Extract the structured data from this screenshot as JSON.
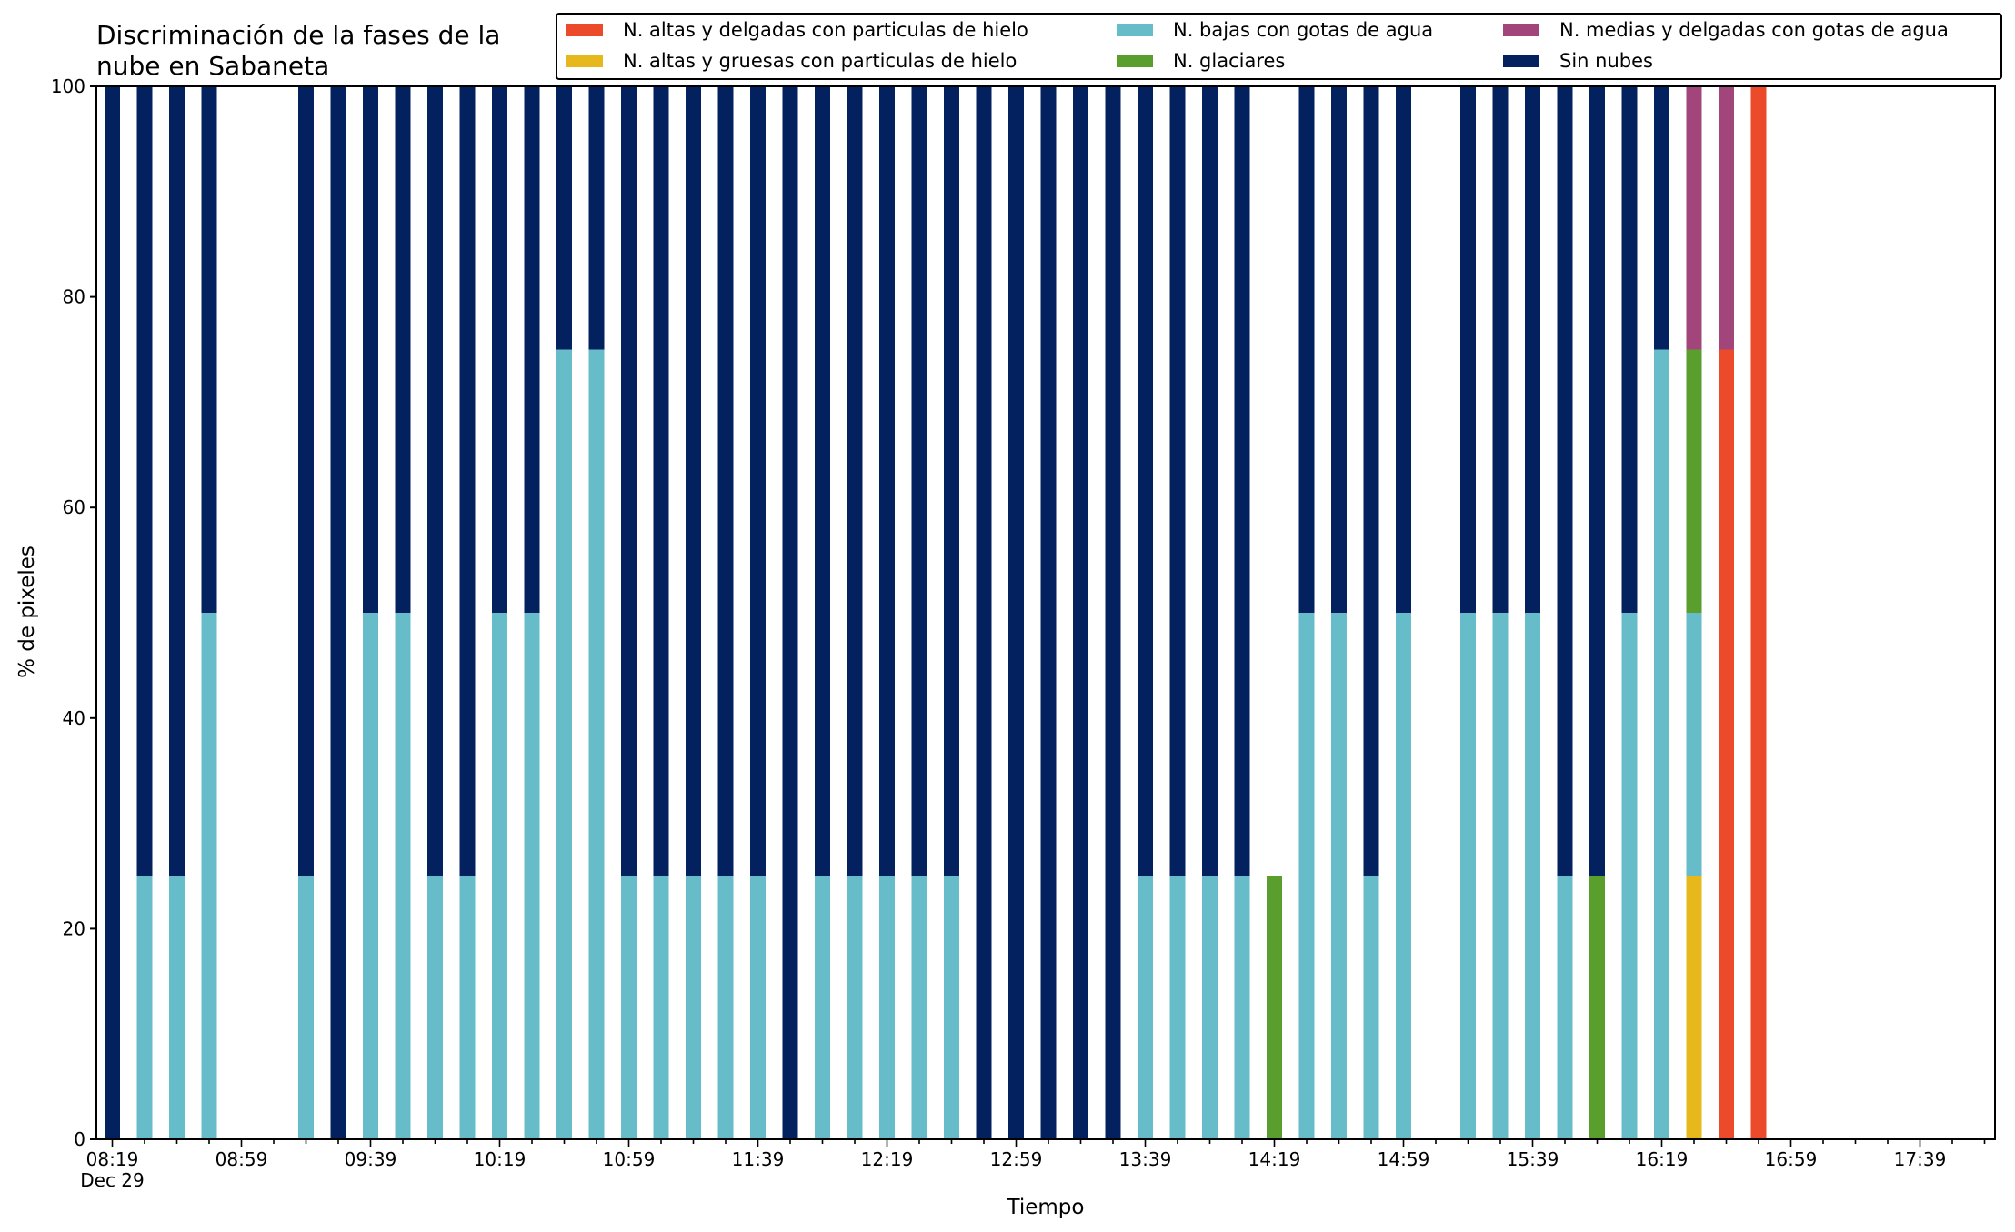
{
  "chart_data": {
    "type": "bar",
    "stacked": true,
    "title": "Discriminación de la fases de la\nnube en Sabaneta",
    "xlabel": "Tiempo",
    "ylabel": "% de pixeles",
    "ylim": [
      0,
      100
    ],
    "y_ticks": [
      0,
      20,
      40,
      60,
      80,
      100
    ],
    "x_tick_labels": [
      "08:19\nDec 29",
      "08:59",
      "09:39",
      "10:19",
      "10:59",
      "11:39",
      "12:19",
      "12:59",
      "13:39",
      "14:19",
      "14:59",
      "15:39",
      "16:19",
      "16:59",
      "17:39"
    ],
    "categories": [
      "08:19",
      "08:29",
      "08:39",
      "08:49",
      "08:59",
      "09:09",
      "09:19",
      "09:29",
      "09:39",
      "09:49",
      "09:59",
      "10:09",
      "10:19",
      "10:29",
      "10:39",
      "10:49",
      "10:59",
      "11:09",
      "11:19",
      "11:29",
      "11:39",
      "11:49",
      "11:59",
      "12:09",
      "12:19",
      "12:29",
      "12:39",
      "12:49",
      "12:59",
      "13:09",
      "13:19",
      "13:29",
      "13:39",
      "13:49",
      "13:59",
      "14:09",
      "14:19",
      "14:29",
      "14:39",
      "14:49",
      "14:59",
      "15:09",
      "15:19",
      "15:29",
      "15:39",
      "15:49",
      "15:59",
      "16:09",
      "16:19",
      "16:29",
      "16:39",
      "16:49",
      "16:59",
      "17:09",
      "17:19",
      "17:29",
      "17:39",
      "17:49",
      "17:59"
    ],
    "legend_position": "top-right",
    "legend_columns": 3,
    "grid": false,
    "series": [
      {
        "name": "N. altas y delgadas con particulas de hielo",
        "color": "#eb4a2b",
        "values": [
          0,
          0,
          0,
          0,
          0,
          0,
          0,
          0,
          0,
          0,
          0,
          0,
          0,
          0,
          0,
          0,
          0,
          0,
          0,
          0,
          0,
          0,
          0,
          0,
          0,
          0,
          0,
          0,
          0,
          0,
          0,
          0,
          0,
          0,
          0,
          0,
          0,
          0,
          0,
          0,
          0,
          0,
          0,
          0,
          0,
          0,
          0,
          0,
          0,
          0,
          75,
          100,
          0,
          0,
          0,
          0,
          0,
          0,
          0
        ]
      },
      {
        "name": "N. altas y gruesas con particulas de hielo",
        "color": "#e6b81c",
        "values": [
          0,
          0,
          0,
          0,
          0,
          0,
          0,
          0,
          0,
          0,
          0,
          0,
          0,
          0,
          0,
          0,
          0,
          0,
          0,
          0,
          0,
          0,
          0,
          0,
          0,
          0,
          0,
          0,
          0,
          0,
          0,
          0,
          0,
          0,
          0,
          0,
          0,
          0,
          0,
          0,
          0,
          0,
          0,
          0,
          0,
          0,
          0,
          0,
          0,
          25,
          0,
          0,
          0,
          0,
          0,
          0,
          0,
          0,
          0
        ]
      },
      {
        "name": "N. bajas con gotas de agua",
        "color": "#66bdc9",
        "values": [
          0,
          25,
          25,
          50,
          0,
          0,
          25,
          0,
          50,
          50,
          25,
          25,
          50,
          50,
          75,
          75,
          25,
          25,
          25,
          25,
          25,
          0,
          25,
          25,
          25,
          25,
          25,
          0,
          0,
          0,
          0,
          0,
          25,
          25,
          25,
          25,
          0,
          50,
          50,
          25,
          50,
          0,
          50,
          50,
          50,
          25,
          0,
          50,
          75,
          25,
          0,
          0,
          0,
          0,
          0,
          0,
          0,
          0,
          0
        ]
      },
      {
        "name": "N. glaciares",
        "color": "#5a9e2e",
        "values": [
          0,
          0,
          0,
          0,
          0,
          0,
          0,
          0,
          0,
          0,
          0,
          0,
          0,
          0,
          0,
          0,
          0,
          0,
          0,
          0,
          0,
          0,
          0,
          0,
          0,
          0,
          0,
          0,
          0,
          0,
          0,
          0,
          0,
          0,
          0,
          0,
          25,
          0,
          0,
          0,
          0,
          0,
          0,
          0,
          0,
          0,
          25,
          0,
          0,
          25,
          0,
          0,
          0,
          0,
          0,
          0,
          0,
          0,
          0
        ]
      },
      {
        "name": "N. medias y delgadas con gotas de agua",
        "color": "#a1457b",
        "values": [
          0,
          0,
          0,
          0,
          0,
          0,
          0,
          0,
          0,
          0,
          0,
          0,
          0,
          0,
          0,
          0,
          0,
          0,
          0,
          0,
          0,
          0,
          0,
          0,
          0,
          0,
          0,
          0,
          0,
          0,
          0,
          0,
          0,
          0,
          0,
          0,
          0,
          0,
          0,
          0,
          0,
          0,
          0,
          0,
          0,
          0,
          0,
          0,
          0,
          25,
          25,
          0,
          0,
          0,
          0,
          0,
          0,
          0,
          0
        ]
      },
      {
        "name": "Sin nubes",
        "color": "#03205f",
        "values": [
          100,
          75,
          75,
          50,
          0,
          0,
          75,
          100,
          50,
          50,
          75,
          75,
          50,
          50,
          25,
          25,
          75,
          75,
          75,
          75,
          75,
          100,
          75,
          75,
          75,
          75,
          75,
          100,
          100,
          100,
          100,
          100,
          75,
          75,
          75,
          75,
          0,
          50,
          50,
          75,
          50,
          0,
          50,
          50,
          50,
          75,
          75,
          50,
          25,
          0,
          0,
          0,
          0,
          0,
          0,
          0,
          0,
          0,
          0
        ]
      }
    ]
  }
}
